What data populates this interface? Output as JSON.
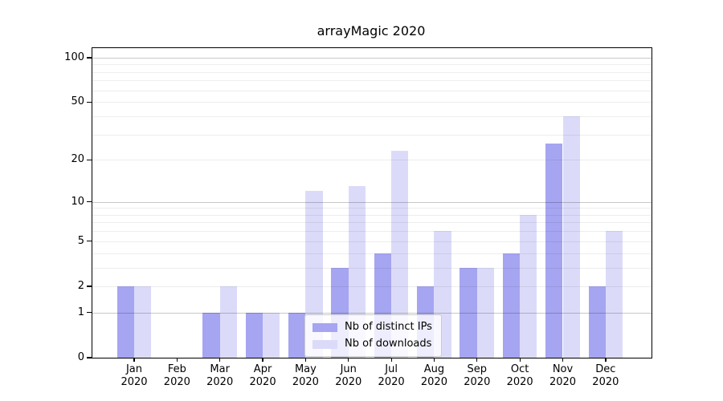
{
  "title": "arrayMagic 2020",
  "chart_data": {
    "type": "bar",
    "title": "arrayMagic 2020",
    "categories": [
      "Jan",
      "Feb",
      "Mar",
      "Apr",
      "May",
      "Jun",
      "Jul",
      "Aug",
      "Sep",
      "Oct",
      "Nov",
      "Dec"
    ],
    "year_label": "2020",
    "series": [
      {
        "name": "Nb of distinct IPs",
        "color": "#a5a5f2",
        "values": [
          2,
          0,
          1,
          1,
          1,
          3,
          4,
          2,
          3,
          4,
          26,
          2
        ]
      },
      {
        "name": "Nb of downloads",
        "color": "#dbdbf9",
        "values": [
          2,
          0,
          2,
          1,
          12,
          13,
          23,
          6,
          3,
          8,
          40,
          6
        ]
      }
    ],
    "yscale": "log1p",
    "ylim": [
      0,
      116
    ],
    "yticks": [
      0,
      1,
      2,
      5,
      10,
      20,
      50,
      100
    ],
    "gridlines_major": [
      1,
      10,
      100
    ],
    "gridlines_minor": [
      2,
      3,
      4,
      5,
      6,
      7,
      8,
      9,
      20,
      30,
      40,
      50,
      60,
      70,
      80,
      90
    ],
    "grid": true,
    "legend_position": "lower center",
    "xlabel": "",
    "ylabel": ""
  }
}
